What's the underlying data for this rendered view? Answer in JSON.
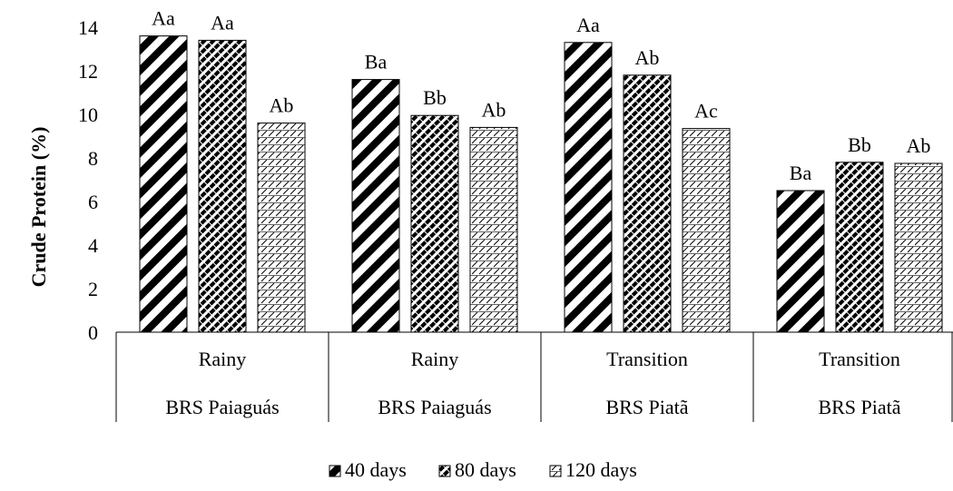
{
  "chart_data": {
    "type": "bar",
    "ylabel": "Crude Protein (%)",
    "ylim": [
      0,
      14
    ],
    "yticks": [
      0,
      2,
      4,
      6,
      8,
      10,
      12,
      14
    ],
    "grid": false,
    "legend_position": "bottom",
    "groups": [
      {
        "period": "Rainy",
        "cultivar": "BRS Paiaguás"
      },
      {
        "period": "Rainy",
        "cultivar": "BRS Paiaguás"
      },
      {
        "period": "Transition",
        "cultivar": "BRS Piatã"
      },
      {
        "period": "Transition",
        "cultivar": "BRS Piatã"
      }
    ],
    "series": [
      {
        "name": "40 days",
        "pattern": "wide-diagonal",
        "values": [
          13.6,
          11.6,
          13.3,
          6.5
        ],
        "labels": [
          "Aa",
          "Ba",
          "Aa",
          "Ba"
        ]
      },
      {
        "name": "80 days",
        "pattern": "dense-diagonal",
        "values": [
          13.4,
          9.95,
          11.8,
          7.8
        ],
        "labels": [
          "Aa",
          "Bb",
          "Ab",
          "Bb"
        ]
      },
      {
        "name": "120 days",
        "pattern": "dotted-dash",
        "values": [
          9.6,
          9.4,
          9.35,
          7.75
        ],
        "labels": [
          "Ab",
          "Ab",
          "Ac",
          "Ab"
        ]
      }
    ]
  }
}
